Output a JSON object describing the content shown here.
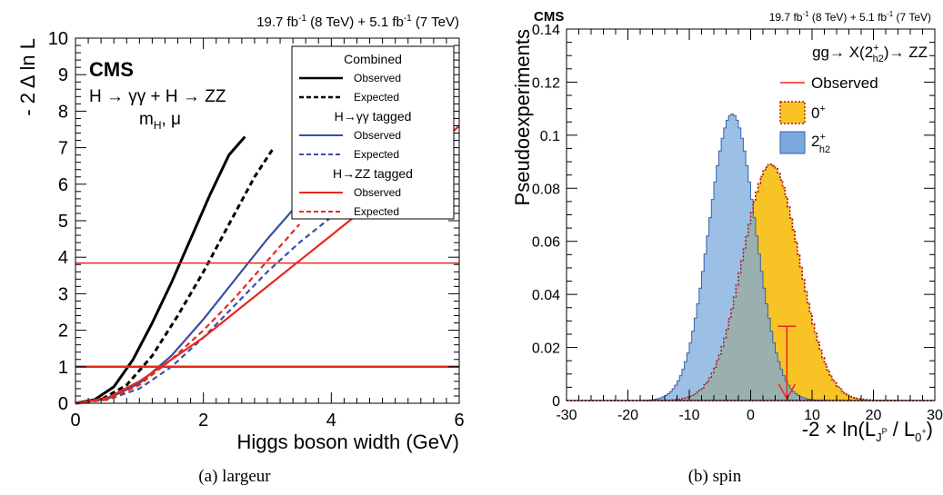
{
  "chart_data": [
    {
      "type": "line",
      "header": {
        "lumi8": "19.7 fb",
        "lumi8_exp": "-1",
        "lumi8_tail": " (8 TeV) +  5.1 fb",
        "lumi7_exp": "-1",
        "lumi7_tail": " (7 TeV)"
      },
      "experiment": "CMS",
      "channel_label": "H → γγ + H → ZZ",
      "params_label": "m",
      "params_sub": "H",
      "params_tail": ", μ",
      "xlabel": "Higgs boson width (GeV)",
      "ylabel": "- 2 Δ ln L",
      "xlim": [
        0,
        6
      ],
      "ylim": [
        0,
        10
      ],
      "xticks": [
        "0",
        "2",
        "4",
        "6"
      ],
      "yticks": [
        "0",
        "1",
        "2",
        "3",
        "4",
        "5",
        "6",
        "7",
        "8",
        "9",
        "10"
      ],
      "hlines": [
        {
          "y": 1,
          "color": "#e8281e"
        },
        {
          "y": 3.84,
          "color": "#e8281e"
        }
      ],
      "legend": {
        "sections": [
          {
            "title": "Combined",
            "entries": [
              {
                "label": "Observed",
                "color": "#000000",
                "dash": false
              },
              {
                "label": "Expected",
                "color": "#000000",
                "dash": true
              }
            ]
          },
          {
            "title": "H→γγ tagged",
            "entries": [
              {
                "label": "Observed",
                "color": "#3a4fa3",
                "dash": false
              },
              {
                "label": "Expected",
                "color": "#3a4fa3",
                "dash": true
              }
            ]
          },
          {
            "title": "H→ZZ tagged",
            "entries": [
              {
                "label": "Observed",
                "color": "#e8281e",
                "dash": false
              },
              {
                "label": "Expected",
                "color": "#e8281e",
                "dash": true
              }
            ]
          }
        ]
      },
      "series": [
        {
          "name": "Combined Observed",
          "color": "#000000",
          "dash": false,
          "x": [
            0,
            0.3,
            0.6,
            0.9,
            1.2,
            1.5,
            1.8,
            2.1,
            2.4,
            2.65
          ],
          "y": [
            0,
            0.1,
            0.45,
            1.2,
            2.2,
            3.3,
            4.5,
            5.7,
            6.8,
            7.3
          ]
        },
        {
          "name": "Combined Expected",
          "color": "#000000",
          "dash": true,
          "x": [
            0,
            0.4,
            0.8,
            1.2,
            1.6,
            2.0,
            2.4,
            2.8,
            3.1
          ],
          "y": [
            0,
            0.1,
            0.5,
            1.3,
            2.4,
            3.6,
            4.9,
            6.2,
            7.0
          ]
        },
        {
          "name": "H→γγ tagged Observed",
          "color": "#3a4fa3",
          "dash": false,
          "x": [
            0,
            0.5,
            1.0,
            1.5,
            2.0,
            2.5,
            3.0,
            3.5,
            4.0,
            4.5,
            5.0,
            5.5,
            5.8
          ],
          "y": [
            0,
            0.12,
            0.55,
            1.3,
            2.3,
            3.4,
            4.5,
            5.5,
            6.0,
            6.4,
            6.9,
            7.5,
            8.0
          ]
        },
        {
          "name": "H→γγ tagged Expected",
          "color": "#3a4fa3",
          "dash": true,
          "x": [
            0,
            0.5,
            1.0,
            1.5,
            2.0,
            2.5,
            3.0,
            3.5,
            4.0,
            4.5,
            5.0,
            5.5,
            5.85
          ],
          "y": [
            0,
            0.1,
            0.4,
            1.0,
            1.8,
            2.7,
            3.6,
            4.4,
            5.1,
            5.8,
            6.6,
            7.4,
            8.0
          ]
        },
        {
          "name": "H→ZZ tagged Observed",
          "color": "#e8281e",
          "dash": false,
          "x": [
            0,
            0.5,
            1.0,
            1.5,
            2.0,
            2.5,
            3.0,
            3.5,
            4.0,
            4.5,
            5.0,
            5.5,
            6.0
          ],
          "y": [
            0,
            0.15,
            0.6,
            1.2,
            1.8,
            2.5,
            3.2,
            3.9,
            4.6,
            5.3,
            6.0,
            6.8,
            7.6
          ]
        },
        {
          "name": "H→ZZ tagged Expected",
          "color": "#e8281e",
          "dash": true,
          "x": [
            0,
            0.5,
            1.0,
            1.5,
            2.0,
            2.5,
            3.0,
            3.5
          ],
          "y": [
            0,
            0.1,
            0.5,
            1.2,
            2.0,
            2.9,
            3.9,
            4.9
          ]
        }
      ],
      "caption": "(a) largeur"
    },
    {
      "type": "area",
      "header": {
        "lumi8": "19.7 fb",
        "lumi8_exp": "-1",
        "lumi8_tail": " (8 TeV) + 5.1 fb",
        "lumi7_exp": "-1",
        "lumi7_tail": " (7 TeV)"
      },
      "experiment": "CMS",
      "process_label": "gg→ X(2",
      "process_sup": "+",
      "process_sub": "h2",
      "process_tail": ")→ ZZ",
      "xlabel": "-2 × ln(L",
      "xlabel_sub": "J",
      "xlabel_subsup": "P",
      "xlabel_mid": " / L",
      "xlabel_sub2": "0",
      "xlabel_sub2sup": "+",
      "xlabel_tail": ")",
      "ylabel": "Pseudoexperiments",
      "xlim": [
        -30,
        30
      ],
      "ylim": [
        0,
        0.14
      ],
      "xticks": [
        "-30",
        "-20",
        "-10",
        "0",
        "10",
        "20",
        "30"
      ],
      "yticks": [
        "0",
        "0.02",
        "0.04",
        "0.06",
        "0.08",
        "0.1",
        "0.12",
        "0.14"
      ],
      "legend": [
        {
          "label": "Observed",
          "kind": "line",
          "color": "#e8281e"
        },
        {
          "label": "0",
          "sup": "+",
          "kind": "fill",
          "color": "#f7c325",
          "edge": "#b01818"
        },
        {
          "label": "2",
          "sup": "+",
          "sub": "h2",
          "kind": "fill",
          "color": "#79a9dc",
          "edge": "#3a5fa8"
        }
      ],
      "series": [
        {
          "name": "0+",
          "color": "#f7c325",
          "edge": "#b01818",
          "mean": 3.3,
          "sigma": 4.6,
          "peak": 0.089
        },
        {
          "name": "2+h2",
          "color": "#79a9dc",
          "edge": "#3a5fa8",
          "mean": -3.0,
          "sigma": 3.8,
          "peak": 0.108
        }
      ],
      "observed": {
        "x": 5.9,
        "y_top": 0.028
      },
      "caption": "(b) spin"
    }
  ]
}
